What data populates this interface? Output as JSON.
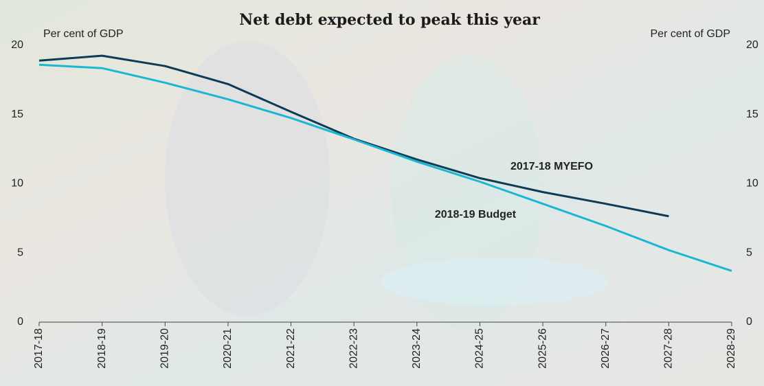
{
  "chart_data": {
    "type": "line",
    "title": "Net debt expected to peak this year",
    "y_label": "Per cent of GDP",
    "y2_label": "Per cent of GDP",
    "categories": [
      "2017-18",
      "2018-19",
      "2019-20",
      "2020-21",
      "2021-22",
      "2022-23",
      "2023-24",
      "2024-25",
      "2025-26",
      "2026-27",
      "2027-28",
      "2028-29"
    ],
    "series": [
      {
        "name": "2017-18 MYEFO",
        "color": "#0d3a56",
        "values": [
          18.9,
          19.25,
          18.5,
          17.2,
          15.2,
          13.25,
          11.75,
          10.4,
          9.4,
          8.55,
          7.65,
          null
        ]
      },
      {
        "name": "2018-19 Budget",
        "color": "#1ab7d2",
        "values": [
          18.6,
          18.35,
          17.3,
          16.1,
          14.75,
          13.2,
          11.6,
          10.15,
          8.55,
          6.95,
          5.2,
          3.7
        ]
      }
    ],
    "ylim": [
      0,
      20
    ],
    "yticks": [
      0,
      5,
      10,
      15,
      20
    ],
    "y2lim": [
      0,
      20
    ],
    "y2ticks": [
      0,
      5,
      10,
      15,
      20
    ],
    "grid": false
  }
}
